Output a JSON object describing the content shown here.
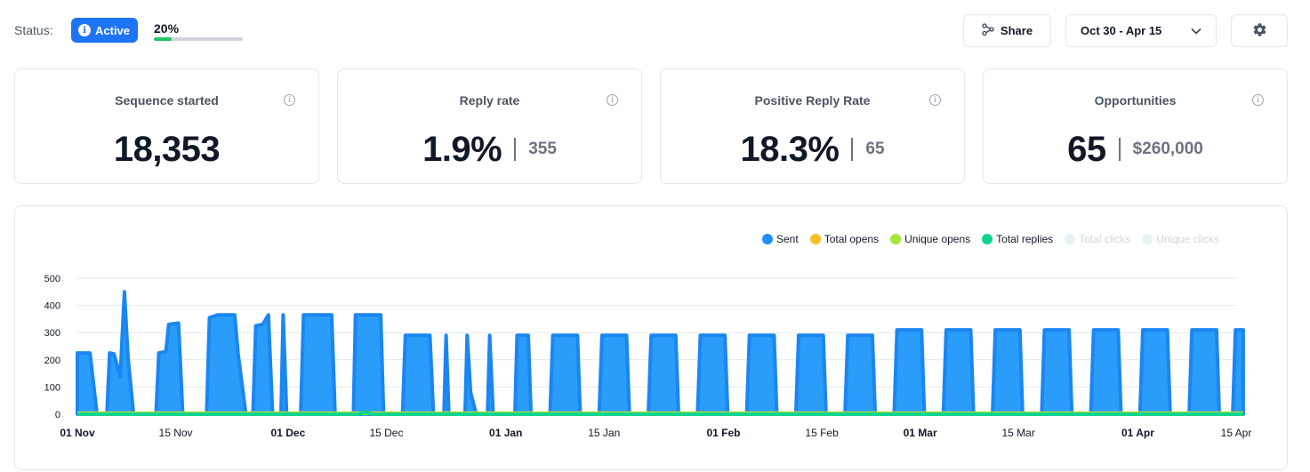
{
  "status": {
    "label": "Status:",
    "badge": "Active",
    "progress_text": "20%",
    "progress_fraction": 0.2
  },
  "toolbar": {
    "share_label": "Share",
    "date_range": "Oct 30 - Apr 15"
  },
  "cards": [
    {
      "title": "Sequence started",
      "value": "18,353",
      "sub": ""
    },
    {
      "title": "Reply rate",
      "value": "1.9%",
      "sub": "355"
    },
    {
      "title": "Positive Reply Rate",
      "value": "18.3%",
      "sub": "65"
    },
    {
      "title": "Opportunities",
      "value": "65",
      "sub": "$260,000"
    }
  ],
  "colors": {
    "accent": "#1d74f5",
    "sent": "#1e90ff",
    "total_opens": "#fbbf24",
    "unique_opens": "#a3e635",
    "total_replies": "#10d48e",
    "total_clicks": "#e5f3f6",
    "unique_clicks": "#e5f3f6"
  },
  "chart_data": {
    "type": "area",
    "legend": [
      {
        "name": "Sent",
        "color": "#1e90ff",
        "active": true
      },
      {
        "name": "Total opens",
        "color": "#fbbf24",
        "active": true
      },
      {
        "name": "Unique opens",
        "color": "#a3e635",
        "active": true
      },
      {
        "name": "Total replies",
        "color": "#10d48e",
        "active": true
      },
      {
        "name": "Total clicks",
        "color": "#e5f3f6",
        "active": false
      },
      {
        "name": "Unique clicks",
        "color": "#e5f3f6",
        "active": false
      }
    ],
    "legend_position": "top-right",
    "grid": true,
    "ylim": [
      0,
      500
    ],
    "yticks": [
      0,
      100,
      200,
      300,
      400,
      500
    ],
    "xticks": [
      {
        "day": 0,
        "label": "01 Nov",
        "bold": true
      },
      {
        "day": 14,
        "label": "15 Nov",
        "bold": false
      },
      {
        "day": 30,
        "label": "01 Dec",
        "bold": true
      },
      {
        "day": 44,
        "label": "15 Dec",
        "bold": false
      },
      {
        "day": 61,
        "label": "01 Jan",
        "bold": true
      },
      {
        "day": 75,
        "label": "15 Jan",
        "bold": false
      },
      {
        "day": 92,
        "label": "01 Feb",
        "bold": true
      },
      {
        "day": 106,
        "label": "15 Feb",
        "bold": false
      },
      {
        "day": 120,
        "label": "01 Mar",
        "bold": true
      },
      {
        "day": 134,
        "label": "15 Mar",
        "bold": false
      },
      {
        "day": 151,
        "label": "01 Apr",
        "bold": true
      },
      {
        "day": 165,
        "label": "15 Apr",
        "bold": false
      }
    ],
    "x_range_days": [
      0,
      165
    ],
    "series": [
      {
        "name": "Sent",
        "points": [
          [
            0,
            225
          ],
          [
            1.8,
            225
          ],
          [
            2.8,
            0
          ],
          [
            4.2,
            0
          ],
          [
            4.6,
            225
          ],
          [
            5.2,
            222
          ],
          [
            6.1,
            140
          ],
          [
            6.7,
            450
          ],
          [
            7.2,
            210
          ],
          [
            8.0,
            0
          ],
          [
            11.2,
            0
          ],
          [
            11.6,
            225
          ],
          [
            12.6,
            230
          ],
          [
            13.0,
            330
          ],
          [
            14.4,
            335
          ],
          [
            15.0,
            0
          ],
          [
            18.4,
            0
          ],
          [
            18.8,
            355
          ],
          [
            20.0,
            365
          ],
          [
            22.4,
            365
          ],
          [
            22.9,
            220
          ],
          [
            24.0,
            0
          ],
          [
            25.0,
            0
          ],
          [
            25.4,
            325
          ],
          [
            26.4,
            330
          ],
          [
            27.2,
            365
          ],
          [
            27.8,
            0
          ],
          [
            29.0,
            0
          ],
          [
            29.3,
            365
          ],
          [
            29.8,
            0
          ],
          [
            31.8,
            0
          ],
          [
            32.2,
            365
          ],
          [
            36.2,
            365
          ],
          [
            36.7,
            0
          ],
          [
            39.3,
            0
          ],
          [
            39.6,
            365
          ],
          [
            43.2,
            365
          ],
          [
            43.6,
            0
          ],
          [
            46.3,
            0
          ],
          [
            46.7,
            290
          ],
          [
            50.2,
            290
          ],
          [
            50.7,
            0
          ],
          [
            52.2,
            0
          ],
          [
            52.5,
            290
          ],
          [
            52.9,
            0
          ],
          [
            55.2,
            0
          ],
          [
            55.5,
            290
          ],
          [
            56.0,
            80
          ],
          [
            56.8,
            0
          ],
          [
            58.4,
            0
          ],
          [
            58.7,
            290
          ],
          [
            59.2,
            0
          ],
          [
            62.3,
            0
          ],
          [
            62.6,
            290
          ],
          [
            64.2,
            290
          ],
          [
            64.6,
            0
          ],
          [
            67.3,
            0
          ],
          [
            67.7,
            290
          ],
          [
            71.2,
            290
          ],
          [
            71.6,
            0
          ],
          [
            74.3,
            0
          ],
          [
            74.7,
            290
          ],
          [
            78.2,
            290
          ],
          [
            78.6,
            0
          ],
          [
            81.3,
            0
          ],
          [
            81.7,
            290
          ],
          [
            85.2,
            290
          ],
          [
            85.6,
            0
          ],
          [
            88.3,
            0
          ],
          [
            88.7,
            290
          ],
          [
            92.2,
            290
          ],
          [
            92.6,
            0
          ],
          [
            95.3,
            0
          ],
          [
            95.7,
            290
          ],
          [
            99.2,
            290
          ],
          [
            99.6,
            0
          ],
          [
            102.3,
            0
          ],
          [
            102.7,
            290
          ],
          [
            106.2,
            290
          ],
          [
            106.6,
            0
          ],
          [
            109.3,
            0
          ],
          [
            109.7,
            290
          ],
          [
            113.2,
            290
          ],
          [
            113.6,
            0
          ],
          [
            116.3,
            0
          ],
          [
            116.7,
            310
          ],
          [
            120.2,
            310
          ],
          [
            120.6,
            0
          ],
          [
            123.3,
            0
          ],
          [
            123.7,
            310
          ],
          [
            127.2,
            310
          ],
          [
            127.6,
            0
          ],
          [
            130.3,
            0
          ],
          [
            130.7,
            310
          ],
          [
            134.2,
            310
          ],
          [
            134.6,
            0
          ],
          [
            137.3,
            0
          ],
          [
            137.7,
            310
          ],
          [
            141.2,
            310
          ],
          [
            141.6,
            0
          ],
          [
            144.3,
            0
          ],
          [
            144.7,
            310
          ],
          [
            148.2,
            310
          ],
          [
            148.6,
            0
          ],
          [
            151.3,
            0
          ],
          [
            151.7,
            310
          ],
          [
            155.2,
            310
          ],
          [
            155.6,
            0
          ],
          [
            158.3,
            0
          ],
          [
            158.7,
            310
          ],
          [
            162.2,
            310
          ],
          [
            162.6,
            0
          ],
          [
            164.5,
            0
          ],
          [
            164.9,
            310
          ],
          [
            166.0,
            310
          ]
        ]
      },
      {
        "name": "Total opens",
        "points": [
          [
            0,
            4
          ],
          [
            166,
            4
          ]
        ]
      },
      {
        "name": "Unique opens",
        "points": [
          [
            0,
            3
          ],
          [
            166,
            3
          ]
        ]
      },
      {
        "name": "Total replies",
        "points": [
          [
            0,
            0
          ],
          [
            40,
            0
          ],
          [
            41,
            8
          ],
          [
            42,
            0
          ],
          [
            166,
            0
          ]
        ]
      }
    ]
  }
}
